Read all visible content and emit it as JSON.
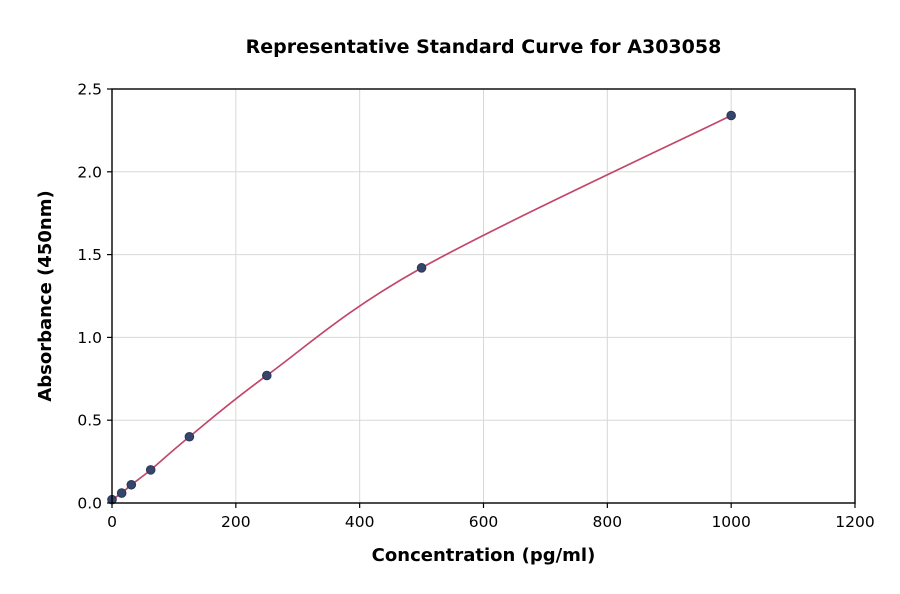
{
  "chart_data": {
    "type": "line",
    "title": "Representative Standard Curve for A303058",
    "xlabel": "Concentration (pg/ml)",
    "ylabel": "Absorbance (450nm)",
    "xlim": [
      0,
      1200
    ],
    "ylim": [
      0,
      2.5
    ],
    "x_ticks": [
      0,
      200,
      400,
      600,
      800,
      1000,
      1200
    ],
    "y_ticks": [
      0.0,
      0.5,
      1.0,
      1.5,
      2.0,
      2.5
    ],
    "grid": true,
    "legend": "none",
    "line_color": "#c2476a",
    "marker_color": "#36456b",
    "marker_edge_color": "#2b3655",
    "grid_color": "#d8d8d8",
    "axis_color": "#000000",
    "points": {
      "x": [
        0,
        15.6,
        31.2,
        62.5,
        125,
        250,
        500,
        1000
      ],
      "y": [
        0.02,
        0.06,
        0.11,
        0.2,
        0.4,
        0.77,
        1.42,
        2.34
      ]
    }
  }
}
